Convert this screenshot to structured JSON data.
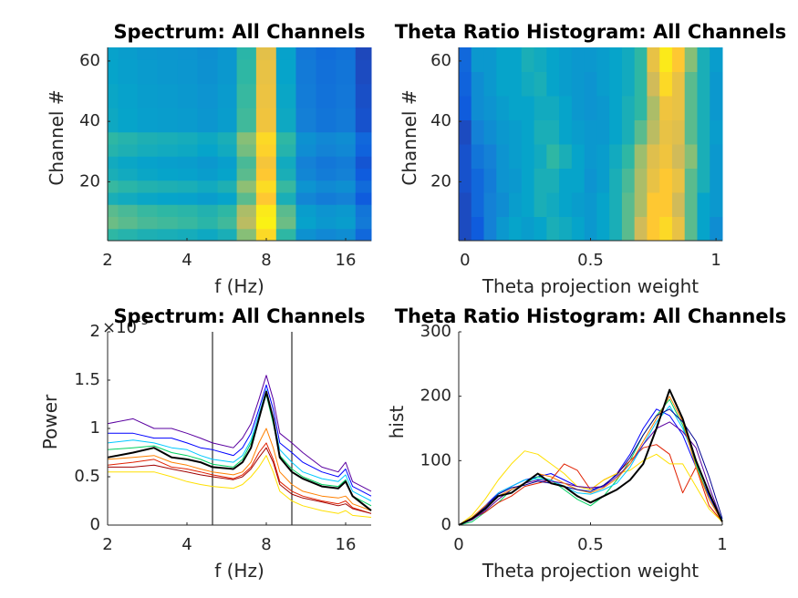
{
  "chart_data": [
    {
      "type": "heatmap",
      "title": "Spectrum: All Channels",
      "xlabel": "f (Hz)",
      "ylabel": "Channel #",
      "xscale": "log",
      "xlim": [
        2,
        20
      ],
      "xticks": [
        2,
        4,
        8,
        16
      ],
      "ylim": [
        0.5,
        64.5
      ],
      "yticks": [
        20,
        40,
        60
      ],
      "colormap": "parula",
      "clim": [
        0,
        1
      ],
      "x": [
        2,
        2.4,
        2.8,
        3.4,
        4,
        4.8,
        5.7,
        6.7,
        8,
        9.5,
        11.3,
        13.5,
        16,
        19
      ],
      "y": [
        2.5,
        6.5,
        10.5,
        14.5,
        18.5,
        22.5,
        26.5,
        30.5,
        34.5,
        38.5,
        42.5,
        46.5,
        50.5,
        54.5,
        58.5,
        62.5
      ],
      "z": [
        [
          0.55,
          0.53,
          0.51,
          0.5,
          0.49,
          0.47,
          0.5,
          0.65,
          0.9,
          0.55,
          0.37,
          0.33,
          0.35,
          0.2
        ],
        [
          0.62,
          0.6,
          0.58,
          0.57,
          0.56,
          0.54,
          0.57,
          0.72,
          0.97,
          0.62,
          0.44,
          0.4,
          0.42,
          0.27
        ],
        [
          0.6,
          0.58,
          0.56,
          0.55,
          0.54,
          0.52,
          0.55,
          0.7,
          0.95,
          0.6,
          0.42,
          0.38,
          0.4,
          0.25
        ],
        [
          0.5,
          0.48,
          0.46,
          0.45,
          0.44,
          0.42,
          0.45,
          0.6,
          0.85,
          0.5,
          0.32,
          0.28,
          0.3,
          0.15
        ],
        [
          0.56,
          0.54,
          0.52,
          0.51,
          0.5,
          0.48,
          0.51,
          0.66,
          0.91,
          0.56,
          0.38,
          0.34,
          0.36,
          0.21
        ],
        [
          0.5,
          0.48,
          0.46,
          0.45,
          0.44,
          0.42,
          0.45,
          0.6,
          0.85,
          0.5,
          0.32,
          0.28,
          0.3,
          0.15
        ],
        [
          0.48,
          0.46,
          0.44,
          0.43,
          0.42,
          0.4,
          0.43,
          0.58,
          0.83,
          0.48,
          0.3,
          0.26,
          0.28,
          0.13
        ],
        [
          0.53,
          0.51,
          0.49,
          0.48,
          0.47,
          0.45,
          0.48,
          0.63,
          0.88,
          0.53,
          0.35,
          0.31,
          0.33,
          0.18
        ],
        [
          0.55,
          0.53,
          0.51,
          0.5,
          0.49,
          0.47,
          0.5,
          0.65,
          0.9,
          0.55,
          0.37,
          0.33,
          0.35,
          0.2
        ],
        [
          0.47,
          0.45,
          0.43,
          0.42,
          0.41,
          0.39,
          0.42,
          0.57,
          0.82,
          0.47,
          0.29,
          0.25,
          0.27,
          0.12
        ],
        [
          0.47,
          0.45,
          0.43,
          0.42,
          0.41,
          0.39,
          0.42,
          0.57,
          0.82,
          0.47,
          0.29,
          0.25,
          0.27,
          0.12
        ],
        [
          0.46,
          0.44,
          0.42,
          0.41,
          0.4,
          0.38,
          0.41,
          0.56,
          0.81,
          0.46,
          0.28,
          0.24,
          0.26,
          0.11
        ],
        [
          0.46,
          0.44,
          0.42,
          0.41,
          0.4,
          0.38,
          0.41,
          0.56,
          0.81,
          0.46,
          0.28,
          0.24,
          0.26,
          0.11
        ],
        [
          0.45,
          0.43,
          0.41,
          0.4,
          0.39,
          0.37,
          0.4,
          0.55,
          0.8,
          0.45,
          0.27,
          0.23,
          0.25,
          0.1
        ],
        [
          0.45,
          0.43,
          0.41,
          0.4,
          0.39,
          0.37,
          0.4,
          0.55,
          0.8,
          0.45,
          0.27,
          0.23,
          0.25,
          0.1
        ],
        [
          0.44,
          0.42,
          0.4,
          0.39,
          0.38,
          0.36,
          0.39,
          0.54,
          0.79,
          0.44,
          0.26,
          0.22,
          0.24,
          0.09
        ]
      ]
    },
    {
      "type": "heatmap",
      "title": "Theta Ratio Histogram: All Channels",
      "xlabel": "Theta projection weight",
      "ylabel": "Channel #",
      "xscale": "linear",
      "xlim": [
        -0.025,
        1.025
      ],
      "xticks": [
        0,
        0.5,
        1
      ],
      "ylim": [
        0.5,
        64.5
      ],
      "yticks": [
        20,
        40,
        60
      ],
      "colormap": "parula",
      "clim": [
        0,
        1
      ],
      "x": [
        0,
        0.05,
        0.1,
        0.15,
        0.2,
        0.25,
        0.3,
        0.35,
        0.4,
        0.45,
        0.5,
        0.55,
        0.6,
        0.65,
        0.7,
        0.75,
        0.8,
        0.85,
        0.9,
        0.95,
        1
      ],
      "y": [
        4.5,
        12.5,
        20.5,
        28.5,
        36.5,
        44.5,
        52.5,
        60.5
      ],
      "z": [
        [
          0.1,
          0.15,
          0.3,
          0.4,
          0.45,
          0.42,
          0.45,
          0.5,
          0.48,
          0.45,
          0.4,
          0.45,
          0.5,
          0.6,
          0.75,
          0.85,
          0.9,
          0.8,
          0.6,
          0.45,
          0.35
        ],
        [
          0.1,
          0.2,
          0.3,
          0.35,
          0.42,
          0.45,
          0.5,
          0.48,
          0.45,
          0.42,
          0.4,
          0.45,
          0.5,
          0.6,
          0.7,
          0.85,
          0.85,
          0.75,
          0.6,
          0.45,
          0.4
        ],
        [
          0.12,
          0.2,
          0.28,
          0.38,
          0.4,
          0.45,
          0.5,
          0.5,
          0.45,
          0.45,
          0.38,
          0.42,
          0.5,
          0.58,
          0.7,
          0.8,
          0.85,
          0.8,
          0.6,
          0.5,
          0.4
        ],
        [
          0.12,
          0.25,
          0.3,
          0.38,
          0.42,
          0.45,
          0.48,
          0.55,
          0.5,
          0.45,
          0.4,
          0.42,
          0.48,
          0.55,
          0.68,
          0.78,
          0.82,
          0.75,
          0.65,
          0.5,
          0.4
        ],
        [
          0.1,
          0.3,
          0.35,
          0.4,
          0.42,
          0.45,
          0.5,
          0.5,
          0.45,
          0.42,
          0.4,
          0.4,
          0.45,
          0.5,
          0.6,
          0.72,
          0.8,
          0.78,
          0.6,
          0.5,
          0.42
        ],
        [
          0.15,
          0.35,
          0.38,
          0.42,
          0.45,
          0.45,
          0.48,
          0.48,
          0.45,
          0.4,
          0.38,
          0.4,
          0.45,
          0.5,
          0.55,
          0.7,
          0.82,
          0.8,
          0.6,
          0.5,
          0.4
        ],
        [
          0.18,
          0.35,
          0.4,
          0.45,
          0.45,
          0.48,
          0.5,
          0.45,
          0.42,
          0.4,
          0.38,
          0.42,
          0.45,
          0.48,
          0.55,
          0.75,
          0.9,
          0.8,
          0.6,
          0.5,
          0.4
        ],
        [
          0.2,
          0.4,
          0.4,
          0.45,
          0.45,
          0.5,
          0.48,
          0.45,
          0.42,
          0.4,
          0.4,
          0.42,
          0.45,
          0.48,
          0.55,
          0.8,
          0.95,
          0.85,
          0.65,
          0.5,
          0.42
        ]
      ]
    },
    {
      "type": "line",
      "title": "Spectrum: All Channels",
      "xlabel": "f (Hz)",
      "ylabel": "Power",
      "y_exponent_label": {
        "base": "×10",
        "power": "-5"
      },
      "xscale": "log",
      "xlim": [
        2,
        20
      ],
      "xticks": [
        2,
        4,
        8,
        16
      ],
      "ylim": [
        0,
        2
      ],
      "yticks": [
        0,
        0.5,
        1,
        1.5,
        2
      ],
      "vlines": [
        5,
        10
      ],
      "x": [
        2,
        2.5,
        3,
        3.5,
        4,
        4.5,
        5,
        6,
        6.5,
        7,
        7.5,
        8,
        8.5,
        9,
        10,
        11,
        13,
        15,
        16,
        17,
        20
      ],
      "series": [
        {
          "color": "#5a00a0",
          "values": [
            1.05,
            1.1,
            1.0,
            1.0,
            0.95,
            0.9,
            0.85,
            0.8,
            0.9,
            1.05,
            1.3,
            1.55,
            1.3,
            0.95,
            0.85,
            0.75,
            0.6,
            0.55,
            0.65,
            0.45,
            0.35
          ]
        },
        {
          "color": "#0000ff",
          "values": [
            0.95,
            0.95,
            0.9,
            0.9,
            0.85,
            0.8,
            0.78,
            0.72,
            0.8,
            0.95,
            1.2,
            1.45,
            1.2,
            0.85,
            0.75,
            0.65,
            0.55,
            0.5,
            0.58,
            0.4,
            0.3
          ]
        },
        {
          "color": "#00c8ff",
          "values": [
            0.85,
            0.88,
            0.85,
            0.8,
            0.78,
            0.72,
            0.68,
            0.65,
            0.72,
            0.88,
            1.15,
            1.4,
            1.1,
            0.78,
            0.65,
            0.55,
            0.48,
            0.45,
            0.52,
            0.35,
            0.25
          ]
        },
        {
          "color": "#00d060",
          "values": [
            0.78,
            0.8,
            0.82,
            0.75,
            0.72,
            0.68,
            0.63,
            0.6,
            0.68,
            0.85,
            1.1,
            1.35,
            1.05,
            0.72,
            0.58,
            0.5,
            0.42,
            0.4,
            0.47,
            0.3,
            0.2
          ]
        },
        {
          "color": "#ff8000",
          "values": [
            0.68,
            0.7,
            0.72,
            0.65,
            0.62,
            0.58,
            0.55,
            0.52,
            0.55,
            0.65,
            0.85,
            1.0,
            0.8,
            0.55,
            0.42,
            0.35,
            0.3,
            0.28,
            0.3,
            0.22,
            0.15
          ]
        },
        {
          "color": "#e02000",
          "values": [
            0.62,
            0.65,
            0.68,
            0.6,
            0.58,
            0.55,
            0.52,
            0.48,
            0.52,
            0.6,
            0.75,
            0.85,
            0.68,
            0.45,
            0.35,
            0.3,
            0.25,
            0.22,
            0.25,
            0.18,
            0.12
          ]
        },
        {
          "color": "#a00000",
          "values": [
            0.6,
            0.6,
            0.62,
            0.58,
            0.55,
            0.52,
            0.5,
            0.47,
            0.5,
            0.58,
            0.7,
            0.8,
            0.65,
            0.42,
            0.32,
            0.28,
            0.24,
            0.2,
            0.22,
            0.17,
            0.12
          ]
        },
        {
          "color": "#ffe000",
          "values": [
            0.55,
            0.55,
            0.55,
            0.5,
            0.45,
            0.42,
            0.4,
            0.38,
            0.42,
            0.5,
            0.6,
            0.72,
            0.55,
            0.35,
            0.25,
            0.2,
            0.15,
            0.12,
            0.15,
            0.1,
            0.08
          ]
        },
        {
          "color": "#000000",
          "values": [
            0.7,
            0.75,
            0.8,
            0.7,
            0.68,
            0.65,
            0.6,
            0.58,
            0.65,
            0.8,
            1.1,
            1.38,
            1.1,
            0.7,
            0.55,
            0.48,
            0.4,
            0.38,
            0.45,
            0.3,
            0.15
          ]
        }
      ]
    },
    {
      "type": "line",
      "title": "Theta Ratio Histogram: All Channels",
      "xlabel": "Theta projection weight",
      "ylabel": "hist",
      "xscale": "linear",
      "xlim": [
        0,
        1
      ],
      "xticks": [
        0,
        0.5,
        1
      ],
      "ylim": [
        0,
        300
      ],
      "yticks": [
        0,
        100,
        200,
        300
      ],
      "x": [
        0,
        0.05,
        0.1,
        0.15,
        0.2,
        0.25,
        0.3,
        0.35,
        0.4,
        0.45,
        0.5,
        0.55,
        0.6,
        0.65,
        0.7,
        0.75,
        0.8,
        0.85,
        0.9,
        0.95,
        1
      ],
      "series": [
        {
          "color": "#0000ff",
          "values": [
            0,
            10,
            30,
            50,
            60,
            70,
            75,
            80,
            70,
            60,
            55,
            60,
            80,
            110,
            150,
            180,
            170,
            140,
            90,
            45,
            5
          ]
        },
        {
          "color": "#00d060",
          "values": [
            0,
            5,
            20,
            35,
            55,
            65,
            75,
            70,
            55,
            40,
            30,
            45,
            70,
            100,
            140,
            170,
            195,
            155,
            95,
            40,
            5
          ]
        },
        {
          "color": "#e02000",
          "values": [
            0,
            10,
            20,
            35,
            45,
            60,
            65,
            70,
            95,
            85,
            55,
            70,
            80,
            100,
            120,
            125,
            110,
            50,
            90,
            30,
            5
          ]
        },
        {
          "color": "#ffe000",
          "values": [
            0,
            15,
            40,
            70,
            95,
            115,
            110,
            95,
            80,
            60,
            55,
            70,
            80,
            85,
            100,
            110,
            95,
            95,
            60,
            25,
            5
          ]
        },
        {
          "color": "#00c8ff",
          "values": [
            0,
            10,
            25,
            50,
            60,
            70,
            72,
            70,
            60,
            50,
            48,
            55,
            65,
            90,
            125,
            160,
            185,
            150,
            100,
            50,
            8
          ]
        },
        {
          "color": "#5a00a0",
          "values": [
            0,
            8,
            22,
            40,
            55,
            65,
            70,
            68,
            65,
            60,
            58,
            60,
            75,
            95,
            125,
            150,
            160,
            145,
            120,
            60,
            5
          ]
        },
        {
          "color": "#ff8000",
          "values": [
            0,
            12,
            30,
            45,
            55,
            65,
            80,
            75,
            65,
            55,
            50,
            58,
            72,
            95,
            130,
            165,
            200,
            160,
            90,
            40,
            5
          ]
        },
        {
          "color": "#000090",
          "values": [
            0,
            10,
            28,
            48,
            58,
            62,
            68,
            65,
            60,
            55,
            52,
            62,
            78,
            105,
            140,
            170,
            180,
            160,
            130,
            75,
            10
          ]
        },
        {
          "color": "#000000",
          "values": [
            0,
            10,
            25,
            45,
            50,
            65,
            80,
            65,
            60,
            45,
            35,
            45,
            55,
            70,
            95,
            150,
            210,
            165,
            100,
            50,
            5
          ]
        }
      ]
    }
  ]
}
